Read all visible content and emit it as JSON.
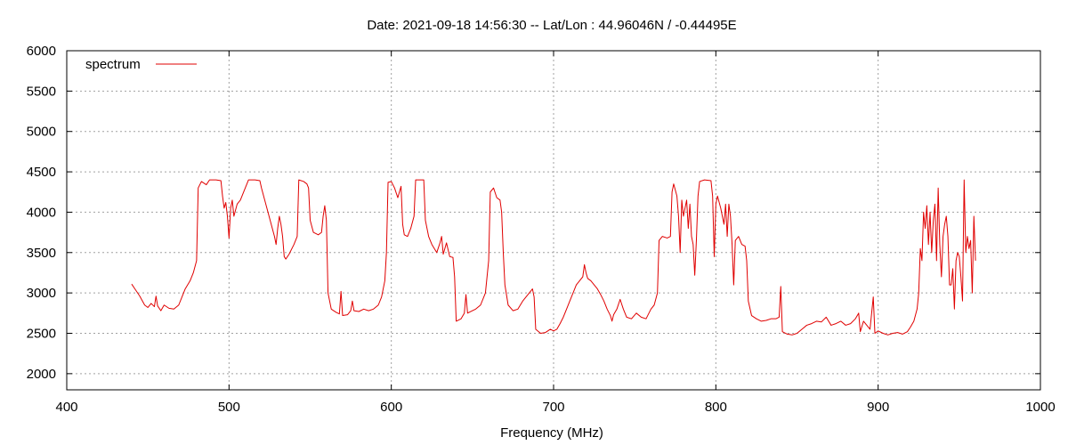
{
  "chart_data": {
    "type": "line",
    "title": "Date: 2021-09-18 14:56:30  --  Lat/Lon : 44.96046N / -0.44495E",
    "xlabel": "Frequency (MHz)",
    "ylabel": "",
    "xlim": [
      400,
      1000
    ],
    "ylim": [
      1800,
      6000
    ],
    "xticks": [
      400,
      500,
      600,
      700,
      800,
      900,
      1000
    ],
    "yticks": [
      2000,
      2500,
      3000,
      3500,
      4000,
      4500,
      5000,
      5500,
      6000
    ],
    "grid": true,
    "legend_position": "top-left",
    "series": [
      {
        "name": "spectrum",
        "color": "#e00000",
        "points": [
          [
            440,
            3110
          ],
          [
            442,
            3050
          ],
          [
            445,
            2960
          ],
          [
            448,
            2850
          ],
          [
            450,
            2820
          ],
          [
            452,
            2870
          ],
          [
            454,
            2830
          ],
          [
            455,
            2960
          ],
          [
            456,
            2840
          ],
          [
            458,
            2780
          ],
          [
            460,
            2850
          ],
          [
            463,
            2810
          ],
          [
            466,
            2800
          ],
          [
            469,
            2850
          ],
          [
            471,
            2950
          ],
          [
            473,
            3050
          ],
          [
            476,
            3150
          ],
          [
            478,
            3250
          ],
          [
            480,
            3400
          ],
          [
            481,
            4300
          ],
          [
            483,
            4380
          ],
          [
            486,
            4340
          ],
          [
            488,
            4400
          ],
          [
            492,
            4400
          ],
          [
            495,
            4390
          ],
          [
            496,
            4200
          ],
          [
            497,
            4050
          ],
          [
            498,
            4120
          ],
          [
            499,
            3950
          ],
          [
            500,
            3680
          ],
          [
            501,
            4050
          ],
          [
            502,
            4150
          ],
          [
            503,
            3950
          ],
          [
            505,
            4100
          ],
          [
            507,
            4150
          ],
          [
            510,
            4300
          ],
          [
            512,
            4400
          ],
          [
            516,
            4400
          ],
          [
            519,
            4390
          ],
          [
            520,
            4300
          ],
          [
            522,
            4150
          ],
          [
            524,
            4000
          ],
          [
            526,
            3850
          ],
          [
            528,
            3700
          ],
          [
            529,
            3600
          ],
          [
            530,
            3800
          ],
          [
            531,
            3950
          ],
          [
            532,
            3850
          ],
          [
            533,
            3700
          ],
          [
            534,
            3450
          ],
          [
            535,
            3420
          ],
          [
            537,
            3480
          ],
          [
            540,
            3600
          ],
          [
            542,
            3700
          ],
          [
            543,
            4400
          ],
          [
            546,
            4380
          ],
          [
            548,
            4350
          ],
          [
            549,
            4300
          ],
          [
            550,
            3900
          ],
          [
            552,
            3750
          ],
          [
            555,
            3720
          ],
          [
            557,
            3750
          ],
          [
            558,
            3950
          ],
          [
            559,
            4080
          ],
          [
            560,
            3900
          ],
          [
            561,
            3000
          ],
          [
            563,
            2800
          ],
          [
            566,
            2760
          ],
          [
            568,
            2740
          ],
          [
            569,
            3020
          ],
          [
            570,
            2720
          ],
          [
            573,
            2730
          ],
          [
            575,
            2780
          ],
          [
            576,
            2900
          ],
          [
            577,
            2780
          ],
          [
            580,
            2770
          ],
          [
            583,
            2800
          ],
          [
            586,
            2780
          ],
          [
            589,
            2800
          ],
          [
            592,
            2850
          ],
          [
            594,
            2950
          ],
          [
            596,
            3150
          ],
          [
            597,
            3500
          ],
          [
            598,
            4370
          ],
          [
            600,
            4380
          ],
          [
            602,
            4300
          ],
          [
            604,
            4180
          ],
          [
            606,
            4320
          ],
          [
            607,
            3850
          ],
          [
            608,
            3720
          ],
          [
            610,
            3700
          ],
          [
            612,
            3800
          ],
          [
            614,
            3950
          ],
          [
            615,
            4400
          ],
          [
            618,
            4400
          ],
          [
            620,
            4400
          ],
          [
            621,
            3900
          ],
          [
            623,
            3700
          ],
          [
            625,
            3600
          ],
          [
            628,
            3500
          ],
          [
            630,
            3620
          ],
          [
            631,
            3700
          ],
          [
            632,
            3480
          ],
          [
            634,
            3620
          ],
          [
            636,
            3450
          ],
          [
            638,
            3440
          ],
          [
            639,
            3200
          ],
          [
            640,
            2650
          ],
          [
            643,
            2680
          ],
          [
            645,
            2750
          ],
          [
            646,
            2980
          ],
          [
            647,
            2750
          ],
          [
            650,
            2780
          ],
          [
            652,
            2800
          ],
          [
            655,
            2850
          ],
          [
            658,
            3000
          ],
          [
            660,
            3400
          ],
          [
            661,
            4250
          ],
          [
            663,
            4300
          ],
          [
            665,
            4180
          ],
          [
            667,
            4150
          ],
          [
            668,
            4000
          ],
          [
            669,
            3500
          ],
          [
            670,
            3100
          ],
          [
            672,
            2850
          ],
          [
            675,
            2780
          ],
          [
            678,
            2800
          ],
          [
            681,
            2900
          ],
          [
            683,
            2950
          ],
          [
            685,
            3000
          ],
          [
            687,
            3050
          ],
          [
            688,
            2950
          ],
          [
            689,
            2550
          ],
          [
            692,
            2500
          ],
          [
            695,
            2510
          ],
          [
            698,
            2550
          ],
          [
            700,
            2530
          ],
          [
            702,
            2550
          ],
          [
            704,
            2620
          ],
          [
            706,
            2700
          ],
          [
            708,
            2800
          ],
          [
            710,
            2900
          ],
          [
            712,
            3000
          ],
          [
            714,
            3100
          ],
          [
            716,
            3150
          ],
          [
            718,
            3200
          ],
          [
            719,
            3350
          ],
          [
            720,
            3250
          ],
          [
            721,
            3180
          ],
          [
            723,
            3150
          ],
          [
            725,
            3100
          ],
          [
            727,
            3050
          ],
          [
            729,
            2980
          ],
          [
            731,
            2900
          ],
          [
            733,
            2800
          ],
          [
            735,
            2720
          ],
          [
            736,
            2650
          ],
          [
            737,
            2730
          ],
          [
            739,
            2800
          ],
          [
            741,
            2920
          ],
          [
            743,
            2800
          ],
          [
            745,
            2700
          ],
          [
            748,
            2680
          ],
          [
            751,
            2750
          ],
          [
            754,
            2700
          ],
          [
            757,
            2680
          ],
          [
            760,
            2800
          ],
          [
            762,
            2850
          ],
          [
            764,
            3000
          ],
          [
            765,
            3650
          ],
          [
            767,
            3700
          ],
          [
            770,
            3680
          ],
          [
            772,
            3700
          ],
          [
            773,
            4250
          ],
          [
            774,
            4350
          ],
          [
            776,
            4200
          ],
          [
            777,
            3950
          ],
          [
            778,
            3500
          ],
          [
            779,
            4150
          ],
          [
            780,
            3950
          ],
          [
            782,
            4150
          ],
          [
            783,
            3800
          ],
          [
            784,
            4100
          ],
          [
            785,
            3700
          ],
          [
            786,
            3600
          ],
          [
            787,
            3220
          ],
          [
            788,
            3650
          ],
          [
            789,
            4200
          ],
          [
            790,
            4380
          ],
          [
            793,
            4400
          ],
          [
            797,
            4390
          ],
          [
            798,
            4200
          ],
          [
            799,
            3450
          ],
          [
            800,
            4100
          ],
          [
            801,
            4200
          ],
          [
            803,
            4050
          ],
          [
            805,
            3850
          ],
          [
            806,
            4100
          ],
          [
            807,
            3700
          ],
          [
            808,
            4100
          ],
          [
            809,
            3950
          ],
          [
            810,
            3600
          ],
          [
            811,
            3100
          ],
          [
            812,
            3650
          ],
          [
            814,
            3700
          ],
          [
            816,
            3600
          ],
          [
            818,
            3580
          ],
          [
            819,
            3400
          ],
          [
            820,
            2900
          ],
          [
            822,
            2720
          ],
          [
            825,
            2680
          ],
          [
            828,
            2650
          ],
          [
            831,
            2660
          ],
          [
            834,
            2680
          ],
          [
            837,
            2680
          ],
          [
            839,
            2700
          ],
          [
            840,
            3080
          ],
          [
            841,
            2520
          ],
          [
            844,
            2490
          ],
          [
            847,
            2480
          ],
          [
            850,
            2500
          ],
          [
            853,
            2550
          ],
          [
            856,
            2600
          ],
          [
            859,
            2620
          ],
          [
            862,
            2650
          ],
          [
            865,
            2640
          ],
          [
            868,
            2700
          ],
          [
            871,
            2600
          ],
          [
            874,
            2620
          ],
          [
            877,
            2650
          ],
          [
            880,
            2600
          ],
          [
            883,
            2620
          ],
          [
            886,
            2680
          ],
          [
            888,
            2750
          ],
          [
            889,
            2520
          ],
          [
            891,
            2650
          ],
          [
            893,
            2600
          ],
          [
            895,
            2550
          ],
          [
            897,
            2950
          ],
          [
            898,
            2500
          ],
          [
            900,
            2530
          ],
          [
            903,
            2500
          ],
          [
            906,
            2480
          ],
          [
            909,
            2500
          ],
          [
            912,
            2510
          ],
          [
            915,
            2490
          ],
          [
            918,
            2520
          ],
          [
            920,
            2580
          ],
          [
            922,
            2650
          ],
          [
            924,
            2800
          ],
          [
            925,
            3000
          ],
          [
            926,
            3550
          ],
          [
            927,
            3400
          ],
          [
            928,
            4000
          ],
          [
            929,
            3800
          ],
          [
            930,
            4080
          ],
          [
            931,
            3600
          ],
          [
            932,
            4000
          ],
          [
            933,
            3500
          ],
          [
            934,
            3900
          ],
          [
            935,
            4100
          ],
          [
            936,
            3400
          ],
          [
            937,
            4300
          ],
          [
            938,
            3600
          ],
          [
            939,
            3200
          ],
          [
            940,
            3700
          ],
          [
            941,
            3850
          ],
          [
            942,
            3950
          ],
          [
            943,
            3700
          ],
          [
            944,
            3100
          ],
          [
            945,
            3100
          ],
          [
            946,
            3300
          ],
          [
            947,
            2800
          ],
          [
            948,
            3400
          ],
          [
            949,
            3500
          ],
          [
            950,
            3450
          ],
          [
            951,
            3200
          ],
          [
            952,
            2900
          ],
          [
            953,
            4400
          ],
          [
            954,
            3500
          ],
          [
            955,
            3700
          ],
          [
            956,
            3550
          ],
          [
            957,
            3650
          ],
          [
            958,
            3000
          ],
          [
            959,
            3950
          ],
          [
            960,
            3400
          ]
        ]
      }
    ]
  }
}
